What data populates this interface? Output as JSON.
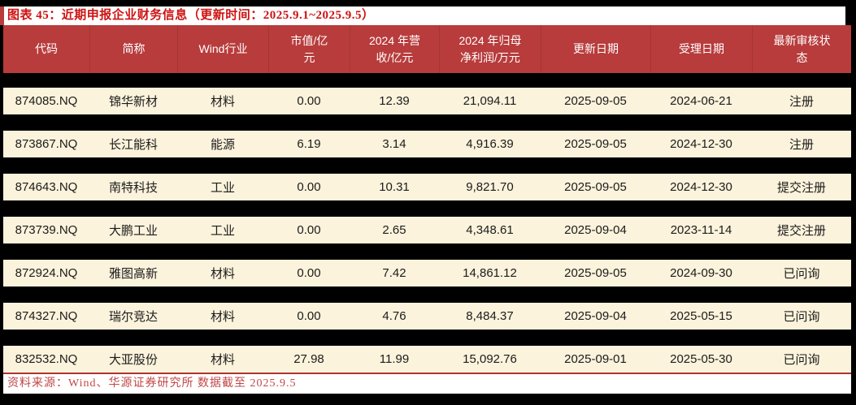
{
  "figure": {
    "title": "图表 45：近期申报企业财务信息（更新时间：2025.9.1~2025.9.5）",
    "source_note": "资料来源：Wind、华源证券研究所 数据截至 2025.9.5"
  },
  "table": {
    "columns": [
      {
        "key": "code",
        "label": "代码"
      },
      {
        "key": "short-name",
        "label": "简称"
      },
      {
        "key": "wind-industry",
        "label": "Wind行业"
      },
      {
        "key": "market-cap",
        "label": "市值/亿\n元"
      },
      {
        "key": "revenue-2024",
        "label": "2024 年营\n收/亿元"
      },
      {
        "key": "net-profit-2024",
        "label": "2024 年归母\n净利润/万元"
      },
      {
        "key": "update-date",
        "label": "更新日期"
      },
      {
        "key": "acceptance-date",
        "label": "受理日期"
      },
      {
        "key": "review-status",
        "label": "最新审核状\n态"
      }
    ],
    "rows": [
      [
        "874085.NQ",
        "锦华新材",
        "材料",
        "0.00",
        "12.39",
        "21,094.11",
        "2025-09-05",
        "2024-06-21",
        "注册"
      ],
      [
        "873867.NQ",
        "长江能科",
        "能源",
        "6.19",
        "3.14",
        "4,916.39",
        "2025-09-05",
        "2024-12-30",
        "注册"
      ],
      [
        "874643.NQ",
        "南特科技",
        "工业",
        "0.00",
        "10.31",
        "9,821.70",
        "2025-09-05",
        "2024-12-30",
        "提交注册"
      ],
      [
        "873739.NQ",
        "大鹏工业",
        "工业",
        "0.00",
        "2.65",
        "4,348.61",
        "2025-09-04",
        "2023-11-14",
        "提交注册"
      ],
      [
        "872924.NQ",
        "雅图高新",
        "材料",
        "0.00",
        "7.42",
        "14,861.12",
        "2025-09-05",
        "2024-09-30",
        "已问询"
      ],
      [
        "874327.NQ",
        "瑞尔竞达",
        "材料",
        "0.00",
        "4.76",
        "8,484.37",
        "2025-09-04",
        "2025-05-15",
        "已问询"
      ],
      [
        "832532.NQ",
        "大亚股份",
        "材料",
        "27.98",
        "11.99",
        "15,092.76",
        "2025-09-01",
        "2025-05-30",
        "已问询"
      ]
    ]
  },
  "colors": {
    "page_background": "#000000",
    "header_background": "#B83C3C",
    "header_text": "#FFFFFF",
    "row_background": "#FCF3DC",
    "row_text": "#1B1B1B",
    "title_text": "#CE1212",
    "title_accent": "#B83C3C",
    "divider_line": "#B03232",
    "source_text": "#C14747"
  }
}
